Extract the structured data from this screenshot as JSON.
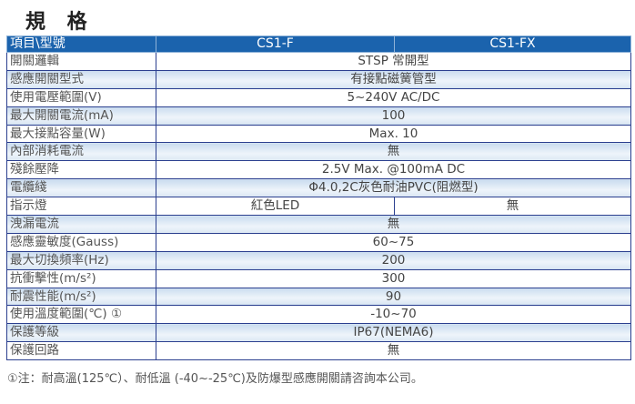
{
  "title": "規 格",
  "table": {
    "headers": [
      "項目\\型號",
      "CS1-F",
      "CS1-FX"
    ],
    "rows": [
      {
        "label": "開關邏輯",
        "value": "STSP 常開型"
      },
      {
        "label": "感應開關型式",
        "value": "有接點磁簧管型"
      },
      {
        "label": "使用電壓範圍(V)",
        "value": "5~240V AC/DC"
      },
      {
        "label": "最大開關電流(mA)",
        "value": "100"
      },
      {
        "label": "最大接點容量(W)",
        "value": "Max. 10"
      },
      {
        "label": "內部消耗電流",
        "value": "無"
      },
      {
        "label": "殘餘壓降",
        "value": "2.5V Max. @100mA DC"
      },
      {
        "label": "電纜綫",
        "value": "Φ4.0,2C灰色耐油PVC(阻燃型)"
      },
      {
        "label": "指示燈",
        "value_f": "紅色LED",
        "value_fx": "無"
      },
      {
        "label": "洩漏電流",
        "value": "無"
      },
      {
        "label": "感應靈敏度(Gauss)",
        "value": "60~75"
      },
      {
        "label": "最大切換頻率(Hz)",
        "value": "200"
      },
      {
        "label": "抗衝擊性(m/s²)",
        "value": "300"
      },
      {
        "label": "耐震性能(m/s²)",
        "value": "90"
      },
      {
        "label": "使用溫度範圍(℃) ①",
        "value": "-10~70"
      },
      {
        "label": "保護等級",
        "value": "IP67(NEMA6)"
      },
      {
        "label": "保護回路",
        "value": "無"
      }
    ]
  },
  "footnote": "①注：耐高溫(125℃）、耐低溫 (-40~-25℃)及防爆型感應開關請咨詢本公司。",
  "colors": {
    "header_bg": "#1b63ad",
    "border": "#2b3f8f",
    "alt_row": "#d6e4f2"
  }
}
